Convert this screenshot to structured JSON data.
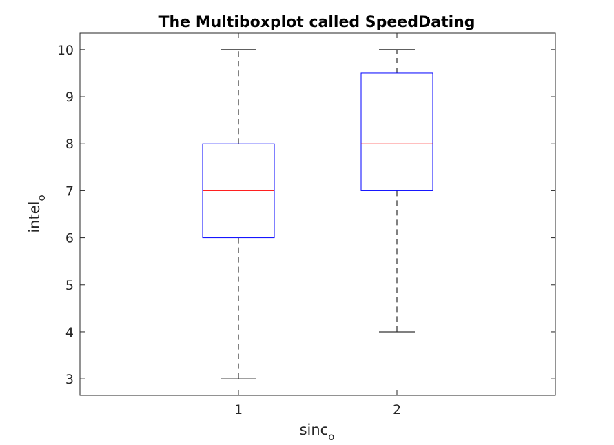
{
  "chart_data": {
    "type": "box",
    "title": "The Multiboxplot called SpeedDating",
    "xlabel": {
      "base": "sinc",
      "subscript": "o"
    },
    "ylabel": {
      "base": "intel",
      "subscript": "o"
    },
    "categories": [
      "1",
      "2"
    ],
    "ylim": [
      2.65,
      10.35
    ],
    "yticks": [
      "3",
      "4",
      "5",
      "6",
      "7",
      "8",
      "9",
      "10"
    ],
    "boxes": [
      {
        "category": "1",
        "whisker_low": 3,
        "q1": 6,
        "median": 7,
        "q3": 8,
        "whisker_high": 10
      },
      {
        "category": "2",
        "whisker_low": 4,
        "q1": 7,
        "median": 8,
        "q3": 9.5,
        "whisker_high": 10
      }
    ],
    "grid": false,
    "colors": {
      "box": "#0000ff",
      "median": "#ff0000",
      "whisker": "#000000",
      "axes": "#262626"
    }
  }
}
